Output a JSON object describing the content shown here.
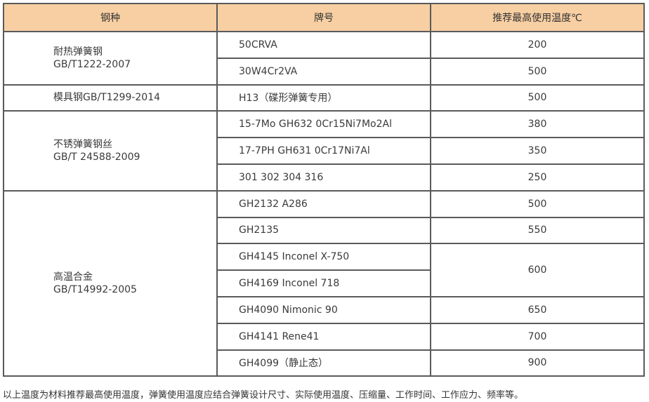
{
  "table": {
    "headers": [
      "钢种",
      "牌号",
      "推荐最高使用温度℃"
    ],
    "groups": [
      {
        "name": "耐热弹簧钢",
        "standard": "GB/T1222-2007"
      },
      {
        "name": "模具钢GB/T1299-2014",
        "standard": ""
      },
      {
        "name": "不锈弹簧钢丝",
        "standard": "GB/T 24588-2009"
      },
      {
        "name": "高温合金",
        "standard": "GB/T14992-2005"
      }
    ],
    "rows": [
      {
        "brand": "50CRVA",
        "temp": "200"
      },
      {
        "brand": "30W4Cr2VA",
        "temp": "500"
      },
      {
        "brand": "H13（碟形弹簧专用）",
        "temp": "500"
      },
      {
        "brand": "15-7Mo  GH632  0Cr15Ni7Mo2Al",
        "temp": "380"
      },
      {
        "brand": "17-7PH  GH631  0Cr17Ni7Al",
        "temp": "350"
      },
      {
        "brand": "301  302  304  316",
        "temp": "250"
      },
      {
        "brand": "GH2132   A286",
        "temp": "500"
      },
      {
        "brand": "GH2135",
        "temp": "550"
      },
      {
        "brand": "GH4145  Inconel  X-750",
        "temp": "600"
      },
      {
        "brand": "GH4169  Inconel  718",
        "temp": ""
      },
      {
        "brand": "GH4090  Nimonic  90",
        "temp": "650"
      },
      {
        "brand": "GH4141  Rene41",
        "temp": "700"
      },
      {
        "brand": "GH4099（静止态）",
        "temp": "900"
      }
    ]
  },
  "note": "以上温度为材料推荐最高使用温度，弹簧使用温度应结合弹簧设计尺寸、实际使用温度、压缩量、工作时间、工作应力、频率等。"
}
